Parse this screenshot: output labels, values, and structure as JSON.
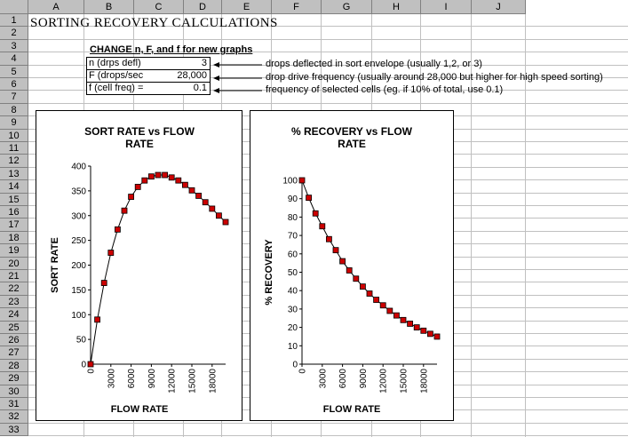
{
  "spreadsheet": {
    "columns": [
      "A",
      "B",
      "C",
      "D",
      "E",
      "F",
      "G",
      "H",
      "I",
      "J"
    ],
    "rows": [
      "1",
      "2",
      "3",
      "4",
      "5",
      "6",
      "7",
      "8",
      "9",
      "10",
      "11",
      "12",
      "13",
      "14",
      "15",
      "16",
      "17",
      "18",
      "19",
      "20",
      "21",
      "22",
      "23",
      "24",
      "25",
      "26",
      "27",
      "28",
      "29",
      "30",
      "31",
      "32",
      "33"
    ]
  },
  "header": {
    "title": "SORTING RECOVERY CALCULATIONS",
    "change_label": "CHANGE n, F, and f for new graphs"
  },
  "inputs": [
    {
      "label": "n (drps defl)",
      "value": "3",
      "description": "drops deflected in sort envelope (usually 1,2, or 3)"
    },
    {
      "label": "F (drops/sec",
      "value": "28,000",
      "description": "drop drive frequency (usually around 28,000 but higher for high speed sorting)"
    },
    {
      "label": "f (cell freq) =",
      "value": "0.1",
      "description": "frequency of selected cells (eg. if 10% of total, use 0.1)"
    }
  ],
  "chart_data": [
    {
      "type": "line",
      "title_line1": "SORT RATE vs FLOW",
      "title_line2": "RATE",
      "xlabel": "FLOW RATE",
      "ylabel": "SORT RATE",
      "xlim": [
        0,
        20000
      ],
      "ylim": [
        0,
        400
      ],
      "xticks": [
        "0",
        "3000",
        "6000",
        "9000",
        "12000",
        "15000",
        "18000"
      ],
      "yticks": [
        "0",
        "50",
        "100",
        "150",
        "200",
        "250",
        "300",
        "350",
        "400"
      ],
      "x": [
        0,
        1000,
        2000,
        3000,
        4000,
        5000,
        6000,
        7000,
        8000,
        9000,
        10000,
        11000,
        12000,
        13000,
        14000,
        15000,
        16000,
        17000,
        18000,
        19000,
        20000
      ],
      "y": [
        0,
        90,
        164,
        225,
        272,
        310,
        338,
        358,
        371,
        379,
        382,
        382,
        377,
        371,
        362,
        351,
        340,
        327,
        314,
        300,
        287
      ],
      "marker_color": "#cc0000"
    },
    {
      "type": "line",
      "title_line1": "% RECOVERY vs FLOW",
      "title_line2": "RATE",
      "xlabel": "FLOW RATE",
      "ylabel": "% RECOVERY",
      "xlim": [
        0,
        20000
      ],
      "ylim": [
        0,
        100
      ],
      "xticks": [
        "0",
        "3000",
        "6000",
        "9000",
        "12000",
        "15000",
        "18000"
      ],
      "yticks": [
        "0",
        "10",
        "20",
        "30",
        "40",
        "50",
        "60",
        "70",
        "80",
        "90",
        "100"
      ],
      "x": [
        0,
        1000,
        2000,
        3000,
        4000,
        5000,
        6000,
        7000,
        8000,
        9000,
        10000,
        11000,
        12000,
        13000,
        14000,
        15000,
        16000,
        17000,
        18000,
        19000,
        20000
      ],
      "y": [
        100,
        90.5,
        82,
        75,
        68,
        62,
        56,
        51,
        46.5,
        42.2,
        38.4,
        35,
        32,
        29,
        26.5,
        24,
        22,
        20,
        18.2,
        16.5,
        15
      ],
      "marker_color": "#cc0000"
    }
  ]
}
